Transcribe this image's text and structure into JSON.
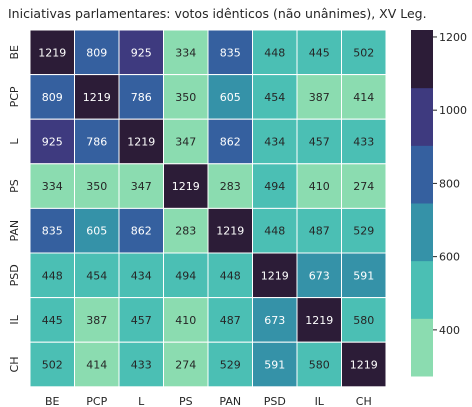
{
  "chart_data": {
    "type": "heatmap",
    "title": "Iniciativas parlamentares: votos idênticos (não unânimes), XV Leg.",
    "rows": [
      "BE",
      "PCP",
      "L",
      "PS",
      "PAN",
      "PSD",
      "IL",
      "CH"
    ],
    "cols": [
      "BE",
      "PCP",
      "L",
      "PS",
      "PAN",
      "PSD",
      "IL",
      "CH"
    ],
    "values": [
      [
        1219,
        809,
        925,
        334,
        835,
        448,
        445,
        502
      ],
      [
        809,
        1219,
        786,
        350,
        605,
        454,
        387,
        414
      ],
      [
        925,
        786,
        1219,
        347,
        862,
        434,
        457,
        433
      ],
      [
        334,
        350,
        347,
        1219,
        283,
        494,
        410,
        274
      ],
      [
        835,
        605,
        862,
        283,
        1219,
        448,
        487,
        529
      ],
      [
        448,
        454,
        434,
        494,
        448,
        1219,
        673,
        591
      ],
      [
        445,
        387,
        457,
        410,
        487,
        673,
        1219,
        580
      ],
      [
        502,
        414,
        433,
        274,
        529,
        591,
        580,
        1219
      ]
    ],
    "colorbar": {
      "vmin": 274,
      "vmax": 1219,
      "ticks": [
        400,
        600,
        800,
        1000,
        1200
      ],
      "bands": [
        "#8bdcb0",
        "#4bbfb4",
        "#3592a8",
        "#35609f",
        "#3e3a7f",
        "#2c1c37"
      ]
    },
    "grid": false,
    "legend": "colorbar-right"
  }
}
